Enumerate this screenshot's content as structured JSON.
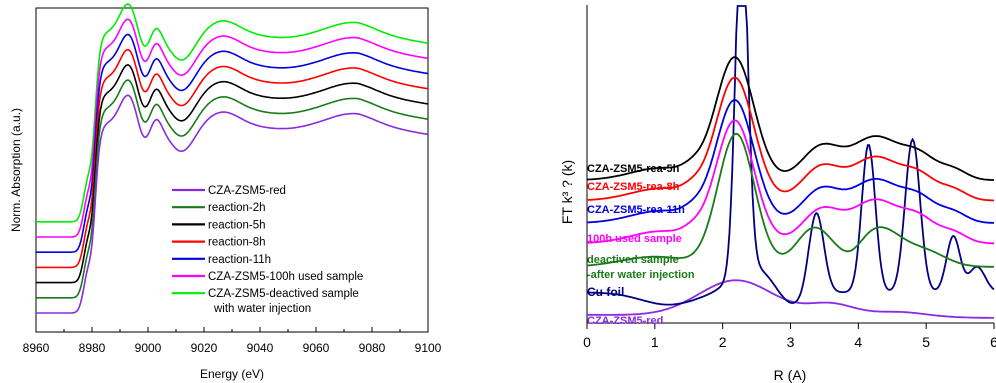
{
  "chart_data": [
    {
      "type": "line",
      "xlabel": "Energy (eV)",
      "ylabel": "Norm. Absorption (a.u.)",
      "xlim": [
        8960,
        9100
      ],
      "xticks": [
        "8960",
        "8980",
        "9000",
        "9020",
        "9040",
        "9060",
        "9080",
        "9100"
      ],
      "grid": false,
      "legend_position": "bottom-right",
      "series": [
        {
          "name": "CZA-ZSM5-red",
          "color": "#8a2be2",
          "offset": 0
        },
        {
          "name": "reaction-2h",
          "color": "#1a7a1a",
          "offset": 1
        },
        {
          "name": "reaction-5h",
          "color": "#000000",
          "offset": 2
        },
        {
          "name": "reaction-8h",
          "color": "#ff0000",
          "offset": 3
        },
        {
          "name": "reaction-11h",
          "color": "#0000e0",
          "offset": 4
        },
        {
          "name": "CZA-ZSM5-100h used sample",
          "color": "#ff00ff",
          "offset": 5
        },
        {
          "name": "CZA-ZSM5-deactived sample",
          "name_line2": "with water injection",
          "color": "#00ee00",
          "offset": 6
        }
      ]
    },
    {
      "type": "line",
      "xlabel": "R (A)",
      "ylabel": "FT k³ ? (k)",
      "xlim": [
        0,
        6
      ],
      "xticks": [
        "0",
        "1",
        "2",
        "3",
        "4",
        "5",
        "6"
      ],
      "grid": false,
      "series": [
        {
          "name": "CZA-ZSM5-red",
          "color": "#8a2be2",
          "peak_R": 2.2,
          "peak_height": 0.35
        },
        {
          "name": "Cu foil",
          "color": "#000080",
          "peak_R": 2.28,
          "peak_height": 3.5,
          "extra_peaks_R": [
            3.4,
            4.15,
            4.8,
            5.4
          ]
        },
        {
          "name": "deactived sample",
          "name_line2": "-after water injection",
          "color": "#1a7a1a",
          "peak_R": 2.2,
          "peak_height": 1.4
        },
        {
          "name": "100h used sample",
          "color": "#ff00ff",
          "peak_R": 2.18,
          "peak_height": 1.2
        },
        {
          "name": "CZA-ZSM5-rea-11h",
          "color": "#0000e0",
          "peak_R": 2.18,
          "peak_height": 1.2
        },
        {
          "name": "CZA-ZSM5-rea-8h",
          "color": "#ff0000",
          "peak_R": 2.18,
          "peak_height": 1.2
        },
        {
          "name": "CZA-ZSM5-rea-5h",
          "color": "#000000",
          "peak_R": 2.18,
          "peak_height": 1.2
        }
      ]
    }
  ]
}
